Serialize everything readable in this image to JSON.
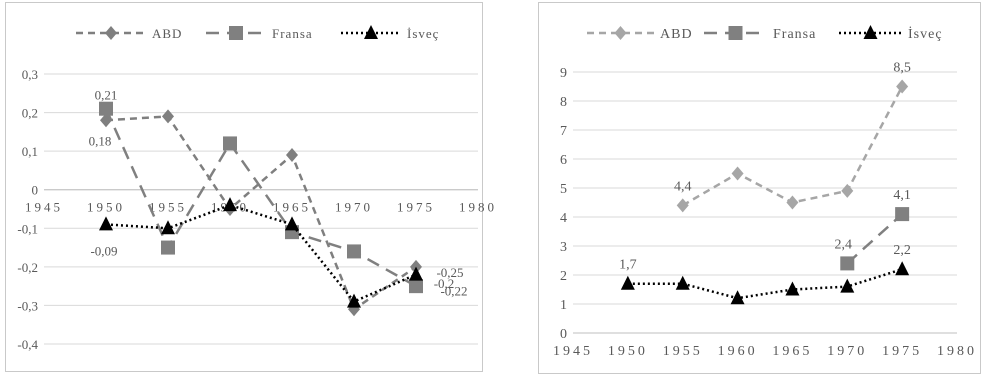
{
  "chart_data": [
    {
      "type": "line",
      "title": "",
      "xlabel": "",
      "ylabel": "",
      "xlim": [
        1945,
        1980
      ],
      "ylim": [
        -0.4,
        0.3
      ],
      "x_ticks": [
        "1945",
        "1950",
        "1955",
        "1960",
        "1965",
        "1970",
        "1975",
        "1980"
      ],
      "y_ticks": [
        "-0,4",
        "-0,3",
        "-0,2",
        "-0,1",
        "0",
        "0,1",
        "0,2",
        "0,3"
      ],
      "grid": "horizontal",
      "legend": "top",
      "x_axis_crosses_at": 0,
      "series": [
        {
          "name": "ABD",
          "marker": "diamond",
          "dash": "dashed",
          "color": "#7f7f7f",
          "x": [
            1950,
            1955,
            1960,
            1965,
            1970,
            1975
          ],
          "values": [
            0.18,
            0.19,
            -0.05,
            0.09,
            -0.31,
            -0.2
          ]
        },
        {
          "name": "Fransa",
          "marker": "square",
          "dash": "long-dash",
          "color": "#808080",
          "x": [
            1950,
            1955,
            1960,
            1965,
            1970,
            1975
          ],
          "values": [
            0.21,
            -0.15,
            0.12,
            -0.11,
            -0.16,
            -0.25
          ]
        },
        {
          "name": "İsveç",
          "marker": "triangle",
          "dash": "dotted",
          "color": "#000000",
          "x": [
            1950,
            1955,
            1960,
            1965,
            1970,
            1975
          ],
          "values": [
            -0.09,
            -0.1,
            -0.04,
            -0.09,
            -0.29,
            -0.22
          ]
        }
      ],
      "data_labels": [
        {
          "text": "0,21",
          "series": "Fransa",
          "x": 1950
        },
        {
          "text": "0,18",
          "series": "ABD",
          "x": 1950
        },
        {
          "text": "-0,09",
          "series": "İsveç",
          "x": 1950
        },
        {
          "text": "-0,25",
          "series": "Fransa",
          "x": 1975
        },
        {
          "text": "-0,22",
          "series": "İsveç",
          "x": 1975
        },
        {
          "text": "-0,2",
          "series": "ABD",
          "x": 1975
        }
      ]
    },
    {
      "type": "line",
      "title": "",
      "xlabel": "",
      "ylabel": "",
      "xlim": [
        1945,
        1980
      ],
      "ylim": [
        0,
        9
      ],
      "x_ticks": [
        "1945",
        "1950",
        "1955",
        "1960",
        "1965",
        "1970",
        "1975",
        "1980"
      ],
      "y_ticks": [
        "0",
        "1",
        "2",
        "3",
        "4",
        "5",
        "6",
        "7",
        "8",
        "9"
      ],
      "grid": "horizontal",
      "legend": "top",
      "series": [
        {
          "name": "ABD",
          "marker": "diamond",
          "dash": "dashed",
          "color": "#a6a6a6",
          "x": [
            1955,
            1960,
            1965,
            1970,
            1975
          ],
          "values": [
            4.4,
            5.5,
            4.5,
            4.9,
            8.5
          ]
        },
        {
          "name": "Fransa",
          "marker": "square",
          "dash": "long-dash",
          "color": "#808080",
          "x": [
            1970,
            1975
          ],
          "values": [
            2.4,
            4.1
          ]
        },
        {
          "name": "İsveç",
          "marker": "triangle",
          "dash": "dotted",
          "color": "#000000",
          "x": [
            1950,
            1955,
            1960,
            1965,
            1970,
            1975
          ],
          "values": [
            1.7,
            1.7,
            1.2,
            1.5,
            1.6,
            2.2
          ]
        }
      ],
      "data_labels": [
        {
          "text": "8,5",
          "series": "ABD",
          "x": 1975
        },
        {
          "text": "4,4",
          "series": "ABD",
          "x": 1955
        },
        {
          "text": "4,1",
          "series": "Fransa",
          "x": 1975
        },
        {
          "text": "2,4",
          "series": "Fransa",
          "x": 1970
        },
        {
          "text": "2,2",
          "series": "İsveç",
          "x": 1975
        },
        {
          "text": "1,7",
          "series": "İsveç",
          "x": 1950
        }
      ]
    }
  ]
}
